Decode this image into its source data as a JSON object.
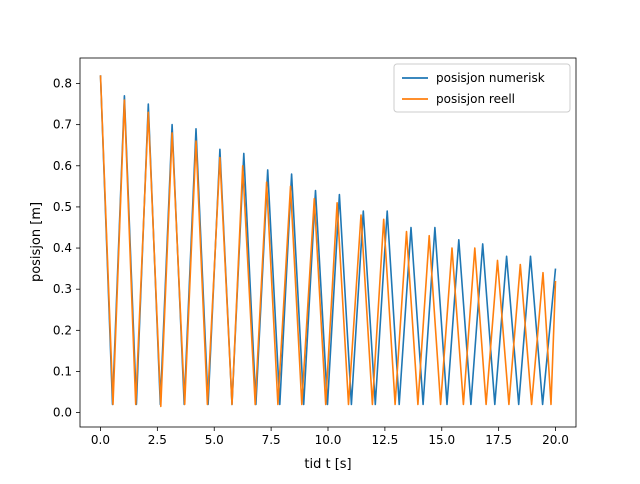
{
  "chart_data": {
    "type": "line",
    "title": "",
    "xlabel": "tid t [s]",
    "ylabel": "posisjon [m]",
    "xlim": [
      -0.9,
      20.9
    ],
    "ylim": [
      -0.035,
      0.862
    ],
    "xticks": [
      "0.0",
      "2.5",
      "5.0",
      "7.5",
      "10.0",
      "12.5",
      "15.0",
      "17.5",
      "20.0"
    ],
    "yticks": [
      "0.0",
      "0.1",
      "0.2",
      "0.3",
      "0.4",
      "0.5",
      "0.6",
      "0.7",
      "0.8"
    ],
    "grid": false,
    "legend_position": "top-right",
    "series": [
      {
        "name": "posisjon numerisk",
        "color": "#1f77b4",
        "x": [
          0.0,
          0.53,
          1.05,
          1.58,
          2.1,
          2.63,
          3.15,
          3.68,
          4.2,
          4.73,
          5.25,
          5.78,
          6.3,
          6.83,
          7.35,
          7.88,
          8.4,
          8.93,
          9.45,
          9.98,
          10.5,
          11.03,
          11.55,
          12.08,
          12.6,
          13.13,
          13.65,
          14.18,
          14.7,
          15.23,
          15.75,
          16.28,
          16.8,
          17.33,
          17.85,
          18.38,
          18.9,
          19.43,
          20.0
        ],
        "y": [
          0.82,
          0.02,
          0.77,
          0.02,
          0.75,
          0.02,
          0.7,
          0.02,
          0.69,
          0.02,
          0.64,
          0.02,
          0.63,
          0.02,
          0.59,
          0.02,
          0.58,
          0.02,
          0.54,
          0.02,
          0.53,
          0.02,
          0.49,
          0.02,
          0.49,
          0.02,
          0.45,
          0.02,
          0.45,
          0.02,
          0.42,
          0.02,
          0.41,
          0.02,
          0.38,
          0.02,
          0.38,
          0.02,
          0.35
        ]
      },
      {
        "name": "posisjon reell",
        "color": "#ff7f0e",
        "x": [
          0.0,
          0.55,
          1.05,
          1.55,
          2.1,
          2.65,
          3.15,
          3.7,
          4.2,
          4.7,
          5.25,
          5.78,
          6.25,
          6.8,
          7.3,
          7.8,
          8.35,
          8.85,
          9.4,
          9.9,
          10.4,
          10.9,
          11.45,
          11.95,
          12.45,
          12.95,
          13.45,
          13.95,
          14.45,
          14.95,
          15.45,
          15.95,
          16.45,
          16.95,
          17.45,
          17.95,
          18.45,
          18.95,
          19.45,
          19.8,
          20.0
        ],
        "y": [
          0.82,
          0.02,
          0.76,
          0.02,
          0.73,
          0.015,
          0.68,
          0.02,
          0.66,
          0.02,
          0.62,
          0.02,
          0.6,
          0.02,
          0.56,
          0.02,
          0.55,
          0.02,
          0.52,
          0.02,
          0.51,
          0.02,
          0.48,
          0.02,
          0.47,
          0.02,
          0.44,
          0.02,
          0.43,
          0.02,
          0.4,
          0.02,
          0.4,
          0.02,
          0.37,
          0.02,
          0.36,
          0.02,
          0.34,
          0.02,
          0.32
        ]
      }
    ]
  }
}
